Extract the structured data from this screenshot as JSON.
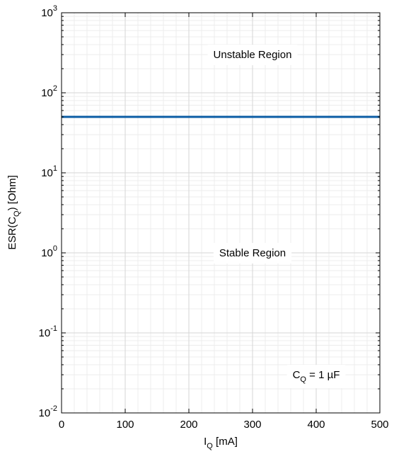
{
  "chart_data": {
    "type": "line",
    "title": "",
    "xlabel": {
      "main": "I",
      "sub": "Q",
      "rest": " [mA]"
    },
    "ylabel": {
      "pre": "ESR(C",
      "sub": "Q",
      "post": ") [Ohm]"
    },
    "x_scale": "linear",
    "y_scale": "log",
    "xlim": [
      0,
      500
    ],
    "ylim": [
      0.01,
      1000
    ],
    "x_ticks": [
      0,
      100,
      200,
      300,
      400,
      500
    ],
    "x_tick_labels": [
      "0",
      "100",
      "200",
      "300",
      "400",
      "500"
    ],
    "y_ticks": [
      {
        "value": 0.01,
        "base": "10",
        "exp": "-2"
      },
      {
        "value": 0.1,
        "base": "10",
        "exp": "-1"
      },
      {
        "value": 1,
        "base": "10",
        "exp": "0"
      },
      {
        "value": 10,
        "base": "10",
        "exp": "1"
      },
      {
        "value": 100,
        "base": "10",
        "exp": "2"
      },
      {
        "value": 1000,
        "base": "10",
        "exp": "3"
      }
    ],
    "grid": true,
    "minor_grid": true,
    "series": [
      {
        "x": [
          0,
          500
        ],
        "y": [
          50,
          50
        ],
        "color": "#0b5da4"
      }
    ],
    "annotations": [
      {
        "text": "Unstable Region",
        "x": 300,
        "y": 300
      },
      {
        "text": "Stable Region",
        "x": 300,
        "y": 1
      },
      {
        "main": "C",
        "sub": "Q",
        "rest": " = 1 µF",
        "x": 400,
        "y": 0.03
      }
    ]
  }
}
